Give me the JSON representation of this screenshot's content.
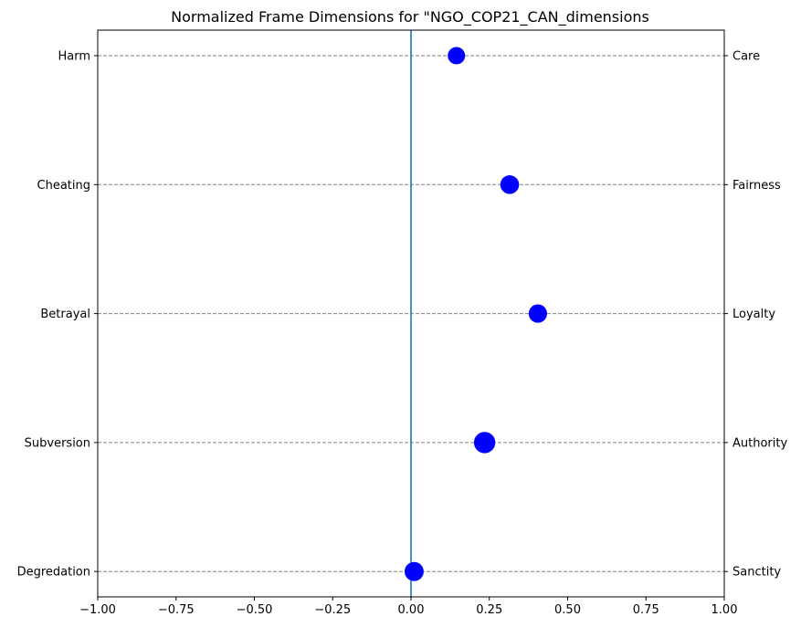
{
  "chart_data": {
    "type": "scatter",
    "title": "Normalized Frame Dimensions for \"NGO_COP21_CAN_dimensions",
    "xlim": [
      -1.0,
      1.0
    ],
    "xticks": [
      "−1.00",
      "−0.75",
      "−0.50",
      "−0.25",
      "0.00",
      "0.25",
      "0.50",
      "0.75",
      "1.00"
    ],
    "xtick_values": [
      -1.0,
      -0.75,
      -0.5,
      -0.25,
      0.0,
      0.25,
      0.5,
      0.75,
      1.0
    ],
    "left_labels": [
      "Harm",
      "Cheating",
      "Betrayal",
      "Subversion",
      "Degredation"
    ],
    "right_labels": [
      "Care",
      "Fairness",
      "Loyalty",
      "Authority",
      "Sanctity"
    ],
    "values": [
      0.145,
      0.315,
      0.405,
      0.235,
      0.01
    ],
    "marker_sizes": [
      1.0,
      1.08,
      1.06,
      1.23,
      1.1
    ],
    "center_line": 0.0,
    "colors": {
      "marker": "#0000ff",
      "center_line": "#1f77b4",
      "grid": "#808080"
    },
    "grid": "horizontal-dashed"
  }
}
